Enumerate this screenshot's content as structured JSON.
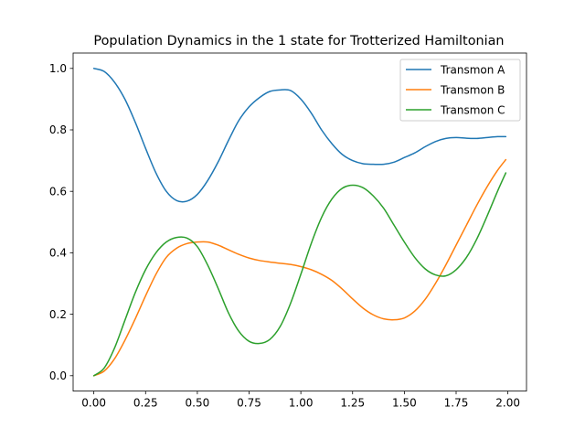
{
  "chart_data": {
    "type": "line",
    "title": "Population Dynamics in the 1 state for Trotterized Hamiltonian",
    "xlabel": "",
    "ylabel": "",
    "xlim": [
      -0.1,
      2.09
    ],
    "ylim": [
      -0.05,
      1.05
    ],
    "xticks": [
      0.0,
      0.25,
      0.5,
      0.75,
      1.0,
      1.25,
      1.5,
      1.75,
      2.0
    ],
    "xtick_labels": [
      "0.00",
      "0.25",
      "0.50",
      "0.75",
      "1.00",
      "1.25",
      "1.50",
      "1.75",
      "2.00"
    ],
    "yticks": [
      0.0,
      0.2,
      0.4,
      0.6,
      0.8,
      1.0
    ],
    "ytick_labels": [
      "0.0",
      "0.2",
      "0.4",
      "0.6",
      "0.8",
      "1.0"
    ],
    "grid": false,
    "legend_position": "top-right",
    "series": [
      {
        "name": "Transmon A",
        "color": "#1f77b4",
        "x": [
          0.0,
          0.05,
          0.1,
          0.15,
          0.2,
          0.25,
          0.3,
          0.35,
          0.4,
          0.45,
          0.5,
          0.55,
          0.6,
          0.65,
          0.7,
          0.75,
          0.8,
          0.85,
          0.9,
          0.95,
          1.0,
          1.05,
          1.1,
          1.15,
          1.2,
          1.25,
          1.3,
          1.35,
          1.4,
          1.45,
          1.5,
          1.55,
          1.6,
          1.65,
          1.7,
          1.75,
          1.8,
          1.85,
          1.9,
          1.95,
          1.99
        ],
        "y": [
          1.0,
          0.99,
          0.955,
          0.9,
          0.825,
          0.74,
          0.66,
          0.6,
          0.57,
          0.568,
          0.59,
          0.635,
          0.695,
          0.765,
          0.83,
          0.875,
          0.905,
          0.925,
          0.93,
          0.928,
          0.9,
          0.855,
          0.8,
          0.755,
          0.72,
          0.7,
          0.69,
          0.688,
          0.688,
          0.695,
          0.71,
          0.725,
          0.745,
          0.762,
          0.772,
          0.775,
          0.773,
          0.772,
          0.775,
          0.778,
          0.778
        ]
      },
      {
        "name": "Transmon B",
        "color": "#ff7f0e",
        "x": [
          0.0,
          0.05,
          0.1,
          0.15,
          0.2,
          0.25,
          0.3,
          0.35,
          0.4,
          0.45,
          0.5,
          0.55,
          0.6,
          0.65,
          0.7,
          0.75,
          0.8,
          0.85,
          0.9,
          0.95,
          1.0,
          1.05,
          1.1,
          1.15,
          1.2,
          1.25,
          1.3,
          1.35,
          1.4,
          1.45,
          1.5,
          1.55,
          1.6,
          1.65,
          1.7,
          1.75,
          1.8,
          1.85,
          1.9,
          1.95,
          1.99
        ],
        "y": [
          0.0,
          0.015,
          0.055,
          0.115,
          0.185,
          0.26,
          0.33,
          0.385,
          0.415,
          0.43,
          0.435,
          0.435,
          0.425,
          0.41,
          0.395,
          0.383,
          0.375,
          0.37,
          0.366,
          0.362,
          0.355,
          0.345,
          0.33,
          0.31,
          0.282,
          0.25,
          0.22,
          0.198,
          0.185,
          0.182,
          0.188,
          0.21,
          0.248,
          0.3,
          0.36,
          0.425,
          0.49,
          0.555,
          0.615,
          0.668,
          0.703
        ]
      },
      {
        "name": "Transmon C",
        "color": "#2ca02c",
        "x": [
          0.0,
          0.05,
          0.1,
          0.15,
          0.2,
          0.25,
          0.3,
          0.35,
          0.4,
          0.45,
          0.5,
          0.55,
          0.6,
          0.65,
          0.7,
          0.75,
          0.8,
          0.85,
          0.9,
          0.95,
          1.0,
          1.05,
          1.1,
          1.15,
          1.2,
          1.25,
          1.3,
          1.35,
          1.4,
          1.45,
          1.5,
          1.55,
          1.6,
          1.65,
          1.7,
          1.75,
          1.8,
          1.85,
          1.9,
          1.95,
          1.99
        ],
        "y": [
          0.0,
          0.025,
          0.09,
          0.18,
          0.27,
          0.345,
          0.4,
          0.435,
          0.45,
          0.448,
          0.42,
          0.36,
          0.285,
          0.205,
          0.145,
          0.112,
          0.105,
          0.118,
          0.16,
          0.235,
          0.33,
          0.43,
          0.515,
          0.575,
          0.61,
          0.62,
          0.612,
          0.585,
          0.545,
          0.49,
          0.435,
          0.385,
          0.348,
          0.328,
          0.325,
          0.345,
          0.385,
          0.445,
          0.52,
          0.6,
          0.66
        ]
      }
    ]
  }
}
